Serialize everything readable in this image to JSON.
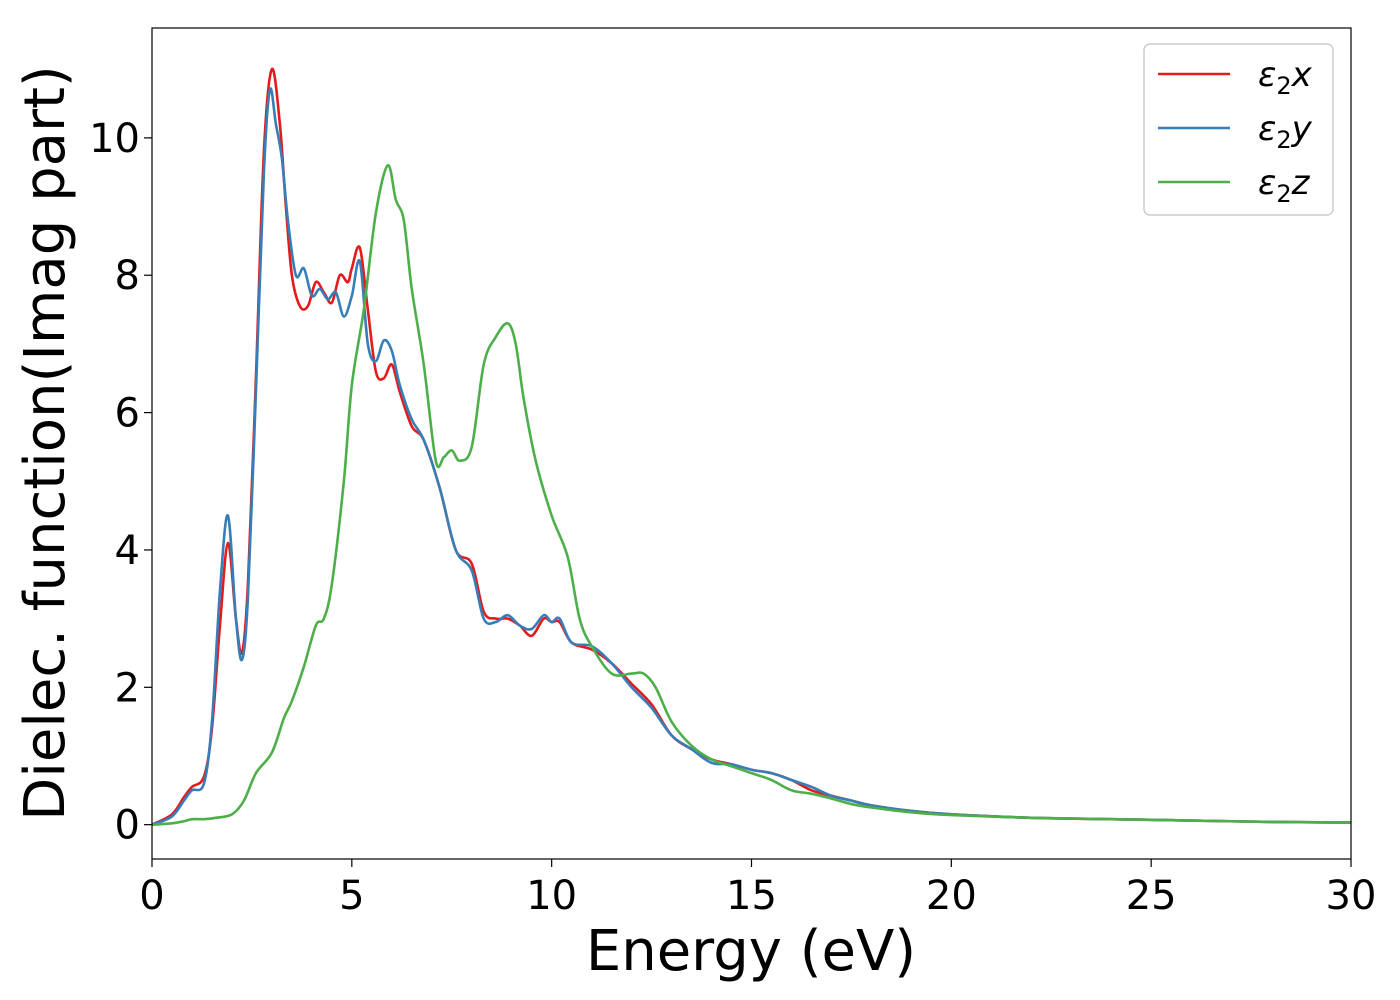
{
  "chart_data": {
    "type": "line",
    "title": "",
    "xlabel": "Energy (eV)",
    "ylabel": "Dielec. function(Imag part)",
    "xlim": [
      0,
      30
    ],
    "ylim": [
      -0.5,
      11.6
    ],
    "xticks": [
      0,
      5,
      10,
      15,
      20,
      25,
      30
    ],
    "yticks": [
      0,
      2,
      4,
      6,
      8,
      10
    ],
    "grid": false,
    "legend_position": "top-right",
    "series": [
      {
        "name": "ε₂x",
        "legend_main": "ε",
        "legend_sub": "2",
        "legend_var": "x",
        "color": "#e41a1c",
        "x": [
          0,
          0.5,
          0.8,
          1.0,
          1.3,
          1.5,
          1.7,
          1.9,
          2.1,
          2.25,
          2.4,
          2.6,
          2.8,
          3.0,
          3.2,
          3.35,
          3.5,
          3.7,
          3.9,
          4.1,
          4.3,
          4.5,
          4.7,
          4.9,
          5.0,
          5.2,
          5.4,
          5.6,
          5.8,
          6.0,
          6.2,
          6.5,
          6.8,
          7.2,
          7.6,
          8.0,
          8.3,
          8.6,
          8.9,
          9.2,
          9.5,
          9.8,
          10.0,
          10.2,
          10.5,
          11.0,
          11.5,
          12.0,
          12.5,
          13.0,
          13.5,
          14.0,
          14.5,
          15.0,
          15.5,
          16.0,
          16.5,
          17.0,
          17.5,
          18.0,
          19.0,
          20.0,
          22.0,
          24.0,
          26.0,
          28.0,
          30.0
        ],
        "y": [
          0.0,
          0.15,
          0.4,
          0.55,
          0.7,
          1.4,
          2.9,
          4.1,
          3.0,
          2.5,
          3.5,
          6.5,
          9.8,
          11.0,
          10.2,
          9.0,
          8.0,
          7.55,
          7.55,
          7.9,
          7.75,
          7.6,
          8.0,
          7.9,
          8.1,
          8.4,
          7.5,
          6.6,
          6.5,
          6.7,
          6.3,
          5.8,
          5.6,
          4.9,
          4.0,
          3.8,
          3.1,
          3.0,
          3.0,
          2.9,
          2.75,
          3.0,
          2.95,
          2.95,
          2.65,
          2.55,
          2.35,
          2.05,
          1.75,
          1.3,
          1.1,
          0.95,
          0.88,
          0.8,
          0.75,
          0.65,
          0.5,
          0.42,
          0.35,
          0.28,
          0.2,
          0.15,
          0.1,
          0.08,
          0.06,
          0.04,
          0.03
        ]
      },
      {
        "name": "ε₂y",
        "legend_main": "ε",
        "legend_sub": "2",
        "legend_var": "y",
        "color": "#377eb8",
        "x": [
          0,
          0.5,
          0.8,
          1.0,
          1.3,
          1.5,
          1.7,
          1.9,
          2.1,
          2.25,
          2.4,
          2.6,
          2.8,
          2.95,
          3.1,
          3.25,
          3.4,
          3.6,
          3.8,
          4.0,
          4.2,
          4.4,
          4.6,
          4.8,
          5.0,
          5.2,
          5.4,
          5.6,
          5.8,
          6.0,
          6.2,
          6.5,
          6.8,
          7.2,
          7.6,
          8.0,
          8.3,
          8.6,
          8.9,
          9.2,
          9.5,
          9.8,
          10.0,
          10.2,
          10.5,
          11.0,
          11.5,
          12.0,
          12.5,
          13.0,
          13.5,
          14.0,
          14.5,
          15.0,
          15.5,
          16.0,
          16.5,
          17.0,
          17.5,
          18.0,
          19.0,
          20.0,
          22.0,
          24.0,
          26.0,
          28.0,
          30.0
        ],
        "y": [
          0.0,
          0.12,
          0.35,
          0.5,
          0.6,
          1.5,
          3.4,
          4.5,
          3.0,
          2.4,
          3.3,
          6.3,
          9.5,
          10.7,
          10.2,
          9.7,
          8.8,
          8.0,
          8.1,
          7.7,
          7.8,
          7.65,
          7.75,
          7.4,
          7.7,
          8.2,
          7.0,
          6.75,
          7.05,
          6.9,
          6.4,
          5.9,
          5.6,
          4.9,
          4.0,
          3.7,
          3.0,
          2.95,
          3.05,
          2.9,
          2.85,
          3.05,
          2.95,
          3.0,
          2.65,
          2.6,
          2.35,
          2.0,
          1.7,
          1.3,
          1.1,
          0.9,
          0.88,
          0.8,
          0.75,
          0.65,
          0.55,
          0.42,
          0.35,
          0.28,
          0.2,
          0.15,
          0.1,
          0.08,
          0.06,
          0.04,
          0.03
        ]
      },
      {
        "name": "ε₂z",
        "legend_main": "ε",
        "legend_sub": "2",
        "legend_var": "z",
        "color": "#4daf4a",
        "x": [
          0,
          0.5,
          0.8,
          1.0,
          1.3,
          1.6,
          2.0,
          2.3,
          2.6,
          3.0,
          3.3,
          3.5,
          3.8,
          4.1,
          4.3,
          4.5,
          4.8,
          5.0,
          5.3,
          5.6,
          5.9,
          6.1,
          6.3,
          6.5,
          6.8,
          7.1,
          7.3,
          7.5,
          7.7,
          8.0,
          8.3,
          8.6,
          8.9,
          9.1,
          9.3,
          9.6,
          10.0,
          10.4,
          10.7,
          11.0,
          11.5,
          12.0,
          12.3,
          12.6,
          13.0,
          13.5,
          14.0,
          14.5,
          15.0,
          15.5,
          16.0,
          16.5,
          17.0,
          17.5,
          18.0,
          19.0,
          20.0,
          22.0,
          24.0,
          26.0,
          28.0,
          30.0
        ],
        "y": [
          0.0,
          0.02,
          0.05,
          0.08,
          0.08,
          0.1,
          0.15,
          0.35,
          0.75,
          1.05,
          1.55,
          1.8,
          2.3,
          2.9,
          3.0,
          3.5,
          5.0,
          6.4,
          7.5,
          8.9,
          9.6,
          9.1,
          8.8,
          7.8,
          6.7,
          5.3,
          5.35,
          5.45,
          5.3,
          5.5,
          6.7,
          7.1,
          7.3,
          7.0,
          6.2,
          5.3,
          4.5,
          3.9,
          3.0,
          2.6,
          2.2,
          2.2,
          2.2,
          2.0,
          1.5,
          1.15,
          0.95,
          0.85,
          0.75,
          0.65,
          0.5,
          0.45,
          0.38,
          0.3,
          0.25,
          0.18,
          0.14,
          0.1,
          0.08,
          0.06,
          0.04,
          0.03
        ]
      }
    ]
  }
}
